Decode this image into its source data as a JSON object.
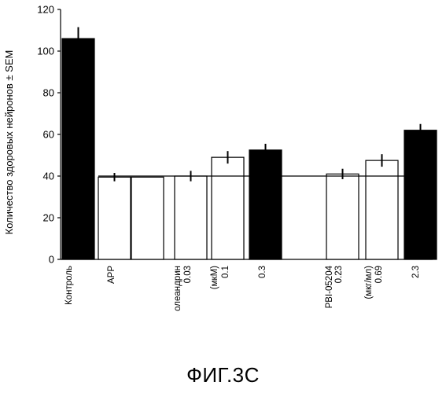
{
  "chart_data": {
    "type": "bar",
    "ylabel": "Количество здоровых нейронов ± SEM",
    "ylim": [
      0,
      120
    ],
    "yticks": [
      0,
      20,
      40,
      60,
      80,
      100,
      120
    ],
    "reference_line": 40,
    "bars": [
      {
        "label": "Контроль",
        "value": 106,
        "error": 5.5,
        "fill": "black"
      },
      {
        "label": "APP",
        "value": 39.5,
        "error": 2,
        "fill": "white"
      },
      {
        "label": "",
        "value": 39.5,
        "error": null,
        "fill": "white"
      },
      {
        "label": "0.03",
        "value": 40,
        "error": 2.5,
        "fill": "white"
      },
      {
        "label": "0.1",
        "value": 49,
        "error": 3,
        "fill": "white"
      },
      {
        "label": "0.3",
        "value": 52.5,
        "error": 3,
        "fill": "black"
      },
      {
        "label": "0.23",
        "value": 41,
        "error": 2.5,
        "fill": "white"
      },
      {
        "label": "0.69",
        "value": 47.5,
        "error": 3,
        "fill": "white"
      },
      {
        "label": "2.3",
        "value": 62,
        "error": 3,
        "fill": "black"
      }
    ],
    "group_labels": [
      {
        "text": "олеандрин",
        "near_bar": 3
      },
      {
        "text": "(мкМ)",
        "near_bar": 4
      },
      {
        "text": "PBI-05204",
        "near_bar": 6
      },
      {
        "text": "(мкг/мл)",
        "near_bar": 7
      }
    ]
  },
  "caption": "ФИГ.3С",
  "colors": {
    "bar_dark": "#000000",
    "bar_light": "#ffffff",
    "axis": "#000000"
  }
}
